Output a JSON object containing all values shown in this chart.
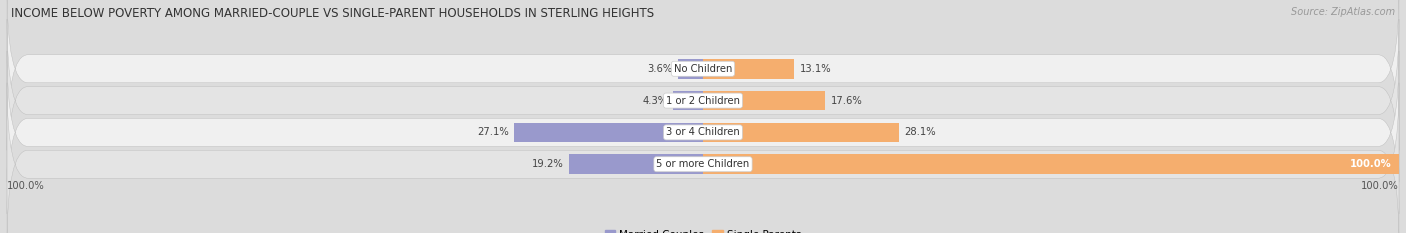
{
  "title": "INCOME BELOW POVERTY AMONG MARRIED-COUPLE VS SINGLE-PARENT HOUSEHOLDS IN STERLING HEIGHTS",
  "source": "Source: ZipAtlas.com",
  "categories": [
    "No Children",
    "1 or 2 Children",
    "3 or 4 Children",
    "5 or more Children"
  ],
  "married_values": [
    3.6,
    4.3,
    27.1,
    19.2
  ],
  "single_values": [
    13.1,
    17.6,
    28.1,
    100.0
  ],
  "married_color": "#9999cc",
  "single_color": "#f5ae6e",
  "row_bg_light": "#f0f0f0",
  "row_bg_dark": "#e4e4e4",
  "title_fontsize": 8.5,
  "label_fontsize": 7.2,
  "source_fontsize": 7.0,
  "axis_label_left": "100.0%",
  "axis_label_right": "100.0%",
  "max_val": 100.0,
  "figsize": [
    14.06,
    2.33
  ],
  "dpi": 100
}
